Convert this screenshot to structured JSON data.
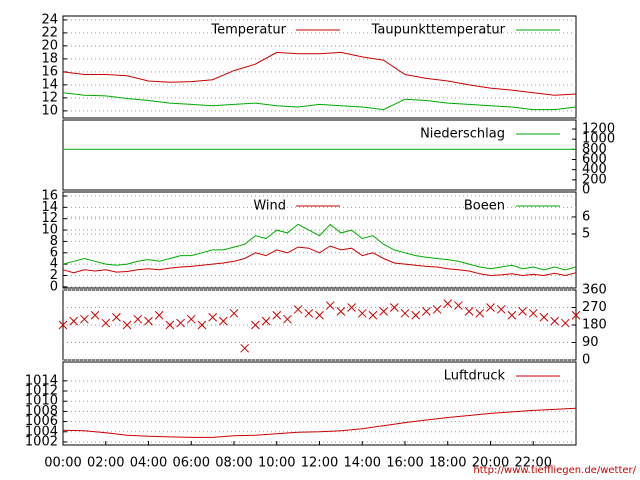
{
  "chart_data": [
    {
      "type": "line",
      "x": [
        0,
        1,
        2,
        3,
        4,
        5,
        6,
        7,
        8,
        9,
        10,
        11,
        12,
        13,
        14,
        15,
        16,
        17,
        18,
        19,
        20,
        21,
        22,
        23,
        24
      ],
      "ylim": [
        8.9,
        24.6
      ],
      "yticks": [
        10,
        12,
        14,
        16,
        18,
        20,
        22,
        24
      ],
      "grid": true,
      "series": [
        {
          "name": "Temperatur",
          "color": "#cc0000",
          "values": [
            16,
            15.6,
            15.6,
            15.4,
            14.6,
            14.4,
            14.5,
            14.8,
            16.2,
            17.2,
            19,
            18.8,
            18.8,
            19,
            18.3,
            17.8,
            15.6,
            15,
            14.6,
            14,
            13.5,
            13.2,
            12.8,
            12.4,
            12.6
          ]
        },
        {
          "name": "Taupunkttemperatur",
          "color": "#00aa00",
          "values": [
            12.8,
            12.4,
            12.3,
            11.9,
            11.6,
            11.2,
            11,
            10.8,
            11,
            11.2,
            10.8,
            10.6,
            11,
            10.8,
            10.6,
            10.2,
            11.8,
            11.6,
            11.2,
            11,
            10.8,
            10.6,
            10.2,
            10.2,
            10.6
          ]
        }
      ]
    },
    {
      "type": "line",
      "x": [
        0,
        24
      ],
      "y2lim": [
        0,
        1377
      ],
      "y2ticks": [
        0,
        200,
        400,
        600,
        800,
        1000,
        1200
      ],
      "grid": false,
      "series": [
        {
          "name": "Niederschlag",
          "color": "#00aa00",
          "axis": "y2",
          "values": [
            800,
            800
          ]
        }
      ]
    },
    {
      "type": "line",
      "x": [
        0,
        0.5,
        1,
        1.5,
        2,
        2.5,
        3,
        3.5,
        4,
        4.5,
        5,
        5.5,
        6,
        6.5,
        7,
        7.5,
        8,
        8.5,
        9,
        9.5,
        10,
        10.5,
        11,
        11.5,
        12,
        12.5,
        13,
        13.5,
        14,
        14.5,
        15,
        15.5,
        16,
        16.5,
        17,
        17.5,
        18,
        18.5,
        19,
        19.5,
        20,
        20.5,
        21,
        21.5,
        22,
        22.5,
        23,
        23.5,
        24
      ],
      "ylim": [
        -0.2,
        16.7
      ],
      "yticks": [
        0,
        2,
        4,
        6,
        8,
        10,
        12,
        14,
        16
      ],
      "y2lim": [
        1.82,
        7.47
      ],
      "y2ticks": [
        5,
        6
      ],
      "grid": true,
      "series": [
        {
          "name": "Wind",
          "color": "#cc0000",
          "values": [
            3,
            2.5,
            3,
            2.8,
            3,
            2.6,
            2.7,
            3,
            3.2,
            3,
            3.3,
            3.5,
            3.6,
            3.8,
            4,
            4.2,
            4.5,
            5,
            6,
            5.5,
            6.5,
            6,
            7,
            6.8,
            6,
            7.2,
            6.5,
            6.8,
            5.5,
            6,
            5,
            4.2,
            4,
            3.8,
            3.6,
            3.5,
            3.2,
            3,
            2.8,
            2.3,
            2,
            2.1,
            2.3,
            2,
            2.2,
            2,
            2.4,
            2,
            2.5
          ]
        },
        {
          "name": "Boeen",
          "color": "#00aa00",
          "values": [
            4,
            4.5,
            5,
            4.5,
            4,
            3.8,
            4,
            4.5,
            4.8,
            4.5,
            5,
            5.5,
            5.5,
            6,
            6.5,
            6.5,
            7,
            7.5,
            9,
            8.5,
            10,
            9.5,
            11,
            10,
            9,
            11,
            9.5,
            10,
            8.5,
            9,
            7.5,
            6.5,
            6,
            5.5,
            5.2,
            5,
            4.8,
            4.5,
            4,
            3.5,
            3.2,
            3.5,
            3.8,
            3.2,
            3.5,
            3,
            3.5,
            3,
            3.5
          ]
        }
      ]
    },
    {
      "type": "scatter",
      "x": [
        0,
        0.5,
        1,
        1.5,
        2,
        2.5,
        3,
        3.5,
        4,
        4.5,
        5,
        5.5,
        6,
        6.5,
        7,
        7.5,
        8,
        8.5,
        9,
        9.5,
        10,
        10.5,
        11,
        11.5,
        12,
        12.5,
        13,
        13.5,
        14,
        14.5,
        15,
        15.5,
        16,
        16.5,
        17,
        17.5,
        18,
        18.5,
        19,
        19.5,
        20,
        20.5,
        21,
        21.5,
        22,
        22.5,
        23,
        23.5,
        24
      ],
      "y2lim": [
        0,
        360
      ],
      "y2ticks": [
        0,
        90,
        180,
        270,
        360
      ],
      "grid": true,
      "series": [
        {
          "color": "#cc0000",
          "axis": "y2",
          "values": [
            180,
            200,
            210,
            230,
            190,
            220,
            180,
            210,
            200,
            230,
            180,
            190,
            210,
            180,
            220,
            200,
            240,
            60,
            180,
            200,
            230,
            210,
            260,
            240,
            230,
            280,
            250,
            270,
            240,
            230,
            250,
            270,
            240,
            230,
            250,
            260,
            290,
            280,
            250,
            240,
            270,
            260,
            230,
            250,
            240,
            220,
            200,
            190,
            230
          ]
        }
      ]
    },
    {
      "type": "line",
      "x": [
        0,
        1,
        2,
        3,
        4,
        5,
        6,
        7,
        8,
        9,
        10,
        11,
        12,
        13,
        14,
        15,
        16,
        17,
        18,
        19,
        20,
        21,
        22,
        23,
        24
      ],
      "ylim": [
        1001.4,
        1017.7
      ],
      "yticks": [
        1002,
        1004,
        1006,
        1008,
        1010,
        1012,
        1014
      ],
      "grid": true,
      "xlim": [
        0,
        24
      ],
      "xticks": [
        {
          "value": 0,
          "label": "00:00"
        },
        {
          "value": 2,
          "label": "02:00"
        },
        {
          "value": 4,
          "label": "04:00"
        },
        {
          "value": 6,
          "label": "06:00"
        },
        {
          "value": 8,
          "label": "08:00"
        },
        {
          "value": 10,
          "label": "10:00"
        },
        {
          "value": 12,
          "label": "12:00"
        },
        {
          "value": 14,
          "label": "14:00"
        },
        {
          "value": 16,
          "label": "16:00"
        },
        {
          "value": 18,
          "label": "18:00"
        },
        {
          "value": 20,
          "label": "20:00"
        },
        {
          "value": 22,
          "label": "22:00"
        }
      ],
      "series": [
        {
          "name": "Luftdruck",
          "color": "#cc0000",
          "values": [
            1004.3,
            1004.2,
            1003.8,
            1003.3,
            1003.1,
            1003,
            1002.9,
            1002.9,
            1003.2,
            1003.3,
            1003.6,
            1003.9,
            1004,
            1004.2,
            1004.6,
            1005.2,
            1005.8,
            1006.3,
            1006.8,
            1007.2,
            1007.6,
            1007.9,
            1008.2,
            1008.4,
            1008.6
          ]
        }
      ]
    }
  ],
  "footer": "http://www.tieffliegen.de/wetter/"
}
